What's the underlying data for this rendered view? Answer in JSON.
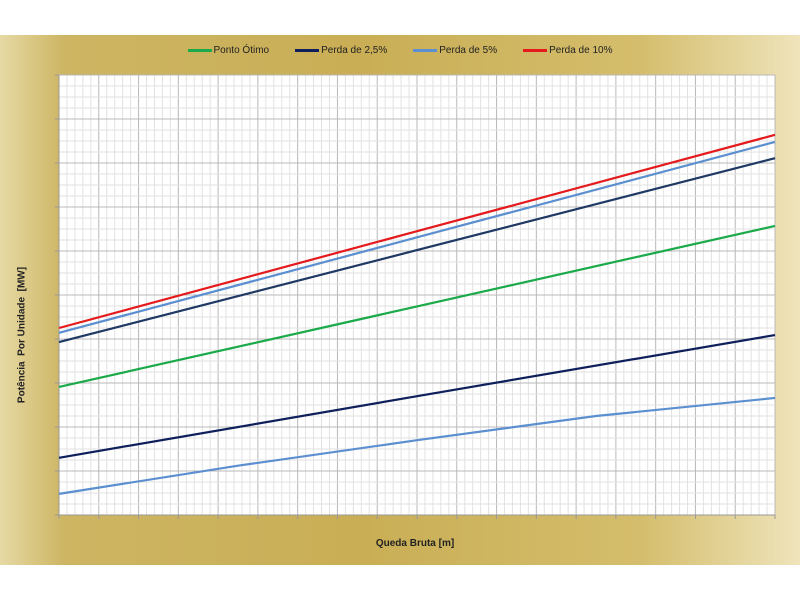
{
  "chart_data": {
    "type": "line",
    "title": "",
    "xlabel": "Queda Bruta [m]",
    "ylabel": "Potência  Por Unidade  [MW]",
    "tick_labels_shown": false,
    "grid": true,
    "legend_position": "top",
    "xlim": [
      0,
      18
    ],
    "ylim": [
      0,
      10
    ],
    "series": [
      {
        "name": "Perda de 10%",
        "color": "#e41a1c",
        "x": [
          0,
          9,
          18
        ],
        "y": [
          4.25,
          6.45,
          8.64
        ]
      },
      {
        "name": "Perda de 5%",
        "color": "#5b8fd0",
        "x": [
          0,
          9,
          18
        ],
        "y": [
          4.14,
          6.31,
          8.48
        ]
      },
      {
        "name": "",
        "color": "#1f3864",
        "x": [
          0,
          9,
          18
        ],
        "y": [
          3.93,
          6.02,
          8.11
        ]
      },
      {
        "name": "Ponto Ótimo",
        "color": "#1aaa4a",
        "x": [
          0,
          9,
          18
        ],
        "y": [
          2.91,
          4.74,
          6.57
        ]
      },
      {
        "name": "Perda de 2,5%",
        "color": "#0f1f5c",
        "x": [
          0,
          9,
          18
        ],
        "y": [
          1.3,
          2.7,
          4.09
        ]
      },
      {
        "name": "",
        "color": "#5b8fd0",
        "x": [
          0,
          4.5,
          9,
          13.5,
          18
        ],
        "y": [
          0.48,
          1.12,
          1.7,
          2.25,
          2.66
        ]
      }
    ],
    "legend": [
      {
        "label": "Ponto Ótimo",
        "color": "#1aaa4a"
      },
      {
        "label": "Perda de 2,5%",
        "color": "#0f1f5c"
      },
      {
        "label": "Perda de 5%",
        "color": "#5b8fd0"
      },
      {
        "label": "Perda de 10%",
        "color": "#e41a1c"
      }
    ]
  }
}
